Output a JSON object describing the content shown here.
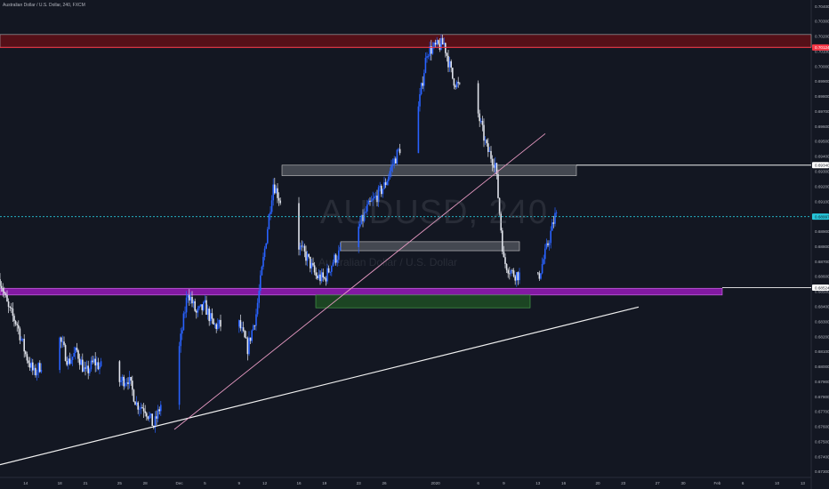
{
  "header": {
    "title": "Australian Dollar / U.S. Dollar, 240, FXCM"
  },
  "watermark": {
    "symbol": "AUDUSD, 240",
    "description": "Australian Dollar / U.S. Dollar"
  },
  "colors": {
    "background": "#131722",
    "bull": "#2962ff",
    "bear": "#e0e3eb",
    "resistance_zone": "#5d0f17",
    "resistance_line": "#f23645",
    "support_zone": "#8f1ab0",
    "demand_zone": "#1e4a24",
    "gray_zone": "#4a4e57",
    "uptrend_line": "#f0f0f0",
    "pink_line": "#e89ac3",
    "current_price_line": "#26c6da"
  },
  "chart_data": {
    "type": "candlestick",
    "symbol": "AUDUSD",
    "timeframe": "240",
    "source": "FXCM",
    "y_axis": {
      "ticks": [
        "0.70400",
        "0.70300",
        "0.70200",
        "0.70100",
        "0.70000",
        "0.69900",
        "0.69800",
        "0.69700",
        "0.69600",
        "0.69500",
        "0.69400",
        "0.69300",
        "0.69200",
        "0.69100",
        "0.69000",
        "0.68900",
        "0.68800",
        "0.68700",
        "0.68600",
        "0.68500",
        "0.68400",
        "0.68300",
        "0.68200",
        "0.68100",
        "0.68000",
        "0.67900",
        "0.67800",
        "0.67700",
        "0.67600",
        "0.67500",
        "0.67400",
        "0.67300"
      ],
      "range": [
        0.6726,
        0.7044
      ]
    },
    "x_axis": {
      "ticks": [
        "14",
        "18",
        "21",
        "25",
        "28",
        "Dec",
        "5",
        "9",
        "12",
        "16",
        "19",
        "23",
        "26",
        "2020",
        "6",
        "9",
        "13",
        "16",
        "20",
        "23",
        "27",
        "30",
        "Feb",
        "6",
        "10",
        "13"
      ]
    },
    "price_labels": [
      {
        "value": 0.70124,
        "text": "0.70124",
        "role": "resistance"
      },
      {
        "value": 0.6934,
        "text": "0.69340",
        "role": "line"
      },
      {
        "value": 0.68997,
        "text": "0.68997",
        "role": "current"
      },
      {
        "value": 0.68524,
        "text": "0.68524",
        "role": "support"
      }
    ],
    "zones": [
      {
        "name": "resistance-zone",
        "from": 0.70125,
        "to": 0.7021,
        "color": "#5d0f17"
      },
      {
        "name": "support-zone",
        "from": 0.6852,
        "to": 0.68475,
        "color": "#8f1ab0"
      },
      {
        "name": "demand-zone",
        "from": 0.68475,
        "to": 0.6839,
        "color": "#1e4a24"
      },
      {
        "name": "upper-gray-zone",
        "from": 0.6934,
        "to": 0.6927,
        "color": "#4a4e57"
      },
      {
        "name": "lower-gray-zone",
        "from": 0.6883,
        "to": 0.6877,
        "color": "#4a4e57"
      }
    ],
    "series_trend": [
      [
        "2019-11-11",
        0.6858
      ],
      [
        "2019-11-12",
        0.6838
      ],
      [
        "2019-11-13",
        0.6828
      ],
      [
        "2019-11-14",
        0.6808
      ],
      [
        "2019-11-15",
        0.6795
      ],
      [
        "2019-11-18",
        0.6818
      ],
      [
        "2019-11-19",
        0.6803
      ],
      [
        "2019-11-20",
        0.681
      ],
      [
        "2019-11-21",
        0.6795
      ],
      [
        "2019-11-22",
        0.6803
      ],
      [
        "2019-11-25",
        0.679
      ],
      [
        "2019-11-26",
        0.6792
      ],
      [
        "2019-11-27",
        0.6775
      ],
      [
        "2019-11-28",
        0.6772
      ],
      [
        "2019-11-29",
        0.676
      ],
      [
        "2019-12-02",
        0.6812
      ],
      [
        "2019-12-03",
        0.685
      ],
      [
        "2019-12-04",
        0.6835
      ],
      [
        "2019-12-05",
        0.684
      ],
      [
        "2019-12-06",
        0.6827
      ],
      [
        "2019-12-09",
        0.6828
      ],
      [
        "2019-12-10",
        0.6812
      ],
      [
        "2019-12-11",
        0.6835
      ],
      [
        "2019-12-12",
        0.6878
      ],
      [
        "2019-12-13",
        0.6922
      ],
      [
        "2019-12-16",
        0.688
      ],
      [
        "2019-12-17",
        0.6872
      ],
      [
        "2019-12-18",
        0.686
      ],
      [
        "2019-12-19",
        0.6858
      ],
      [
        "2019-12-20",
        0.687
      ],
      [
        "2019-12-23",
        0.6892
      ],
      [
        "2019-12-24",
        0.6905
      ],
      [
        "2019-12-26",
        0.692
      ],
      [
        "2019-12-27",
        0.6935
      ],
      [
        "2019-12-30",
        0.6972
      ],
      [
        "2019-12-31",
        0.701
      ],
      [
        "2020-01-02",
        0.7015
      ],
      [
        "2020-01-03",
        0.6992
      ],
      [
        "2020-01-06",
        0.6968
      ],
      [
        "2020-01-07",
        0.6945
      ],
      [
        "2020-01-08",
        0.6935
      ],
      [
        "2020-01-09",
        0.687
      ],
      [
        "2020-01-10",
        0.6862
      ],
      [
        "2020-01-13",
        0.6858
      ],
      [
        "2020-01-14",
        0.6878
      ],
      [
        "2020-01-15",
        0.69
      ]
    ],
    "grid": false,
    "legend": "none"
  }
}
